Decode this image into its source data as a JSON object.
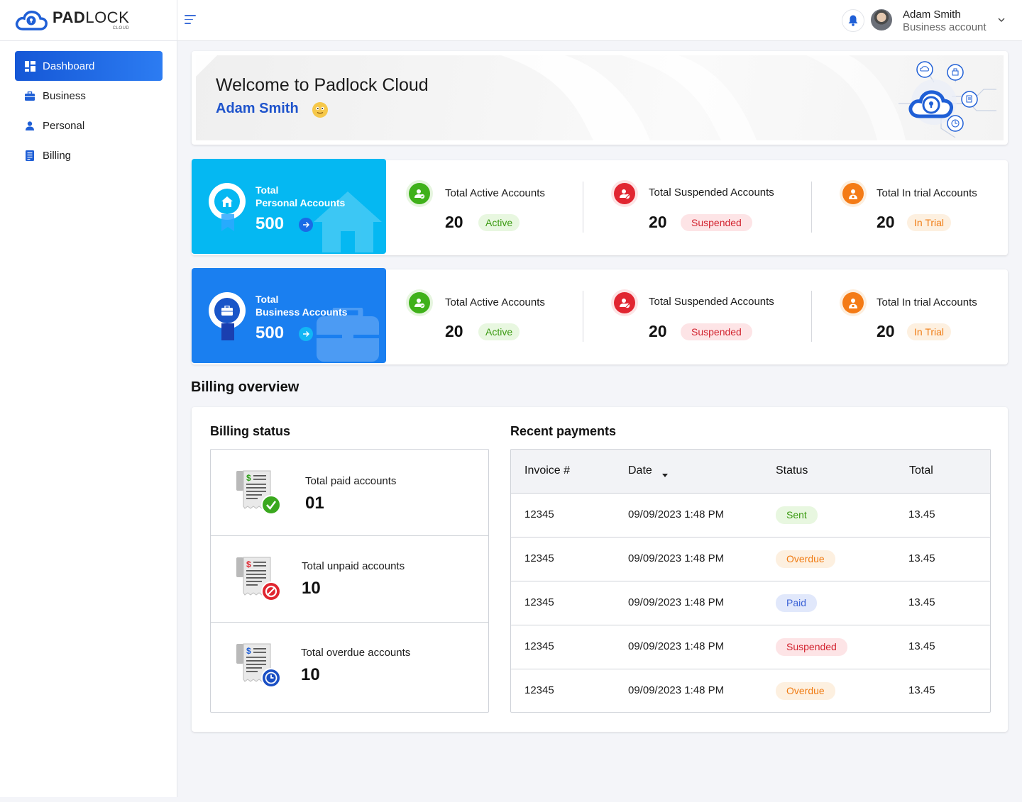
{
  "brand": {
    "word_bold": "PAD",
    "word_light": "LOCK",
    "sub": "CLOUD"
  },
  "sidebar": {
    "items": [
      {
        "label": "Dashboard",
        "icon": "dashboard-icon",
        "active": true
      },
      {
        "label": "Business",
        "icon": "briefcase-icon",
        "active": false
      },
      {
        "label": "Personal",
        "icon": "person-icon",
        "active": false
      },
      {
        "label": "Billing",
        "icon": "document-icon",
        "active": false
      }
    ]
  },
  "header": {
    "user_name": "Adam Smith",
    "user_role": "Business account"
  },
  "welcome": {
    "title": "Welcome to Padlock Cloud",
    "name": "Adam Smith"
  },
  "personal": {
    "line1": "Total",
    "line2": "Personal Accounts",
    "total": "500",
    "stats": [
      {
        "label": "Total Active Accounts",
        "value": "20",
        "badge": "Active"
      },
      {
        "label": "Total Suspended Accounts",
        "value": "20",
        "badge": "Suspended"
      },
      {
        "label": "Total In trial Accounts",
        "value": "20",
        "badge": "In Trial"
      }
    ]
  },
  "business": {
    "line1": "Total",
    "line2": "Business Accounts",
    "total": "500",
    "stats": [
      {
        "label": "Total Active Accounts",
        "value": "20",
        "badge": "Active"
      },
      {
        "label": "Total Suspended Accounts",
        "value": "20",
        "badge": "Suspended"
      },
      {
        "label": "Total In trial Accounts",
        "value": "20",
        "badge": "In Trial"
      }
    ]
  },
  "billing": {
    "section_title": "Billing overview",
    "status_title": "Billing status",
    "status": [
      {
        "label": "Total paid accounts",
        "value": "01"
      },
      {
        "label": "Total unpaid accounts",
        "value": "10"
      },
      {
        "label": "Total overdue accounts",
        "value": "10"
      }
    ],
    "payments_title": "Recent payments",
    "columns": [
      "Invoice #",
      "Date",
      "Status",
      "Total"
    ],
    "rows": [
      {
        "invoice": "12345",
        "date": "09/09/2023 1:48 PM",
        "status": "Sent",
        "total": "13.45"
      },
      {
        "invoice": "12345",
        "date": "09/09/2023 1:48 PM",
        "status": "Overdue",
        "total": "13.45"
      },
      {
        "invoice": "12345",
        "date": "09/09/2023 1:48 PM",
        "status": "Paid",
        "total": "13.45"
      },
      {
        "invoice": "12345",
        "date": "09/09/2023 1:48 PM",
        "status": "Suspended",
        "total": "13.45"
      },
      {
        "invoice": "12345",
        "date": "09/09/2023 1:48 PM",
        "status": "Overdue",
        "total": "13.45"
      }
    ]
  },
  "colors": {
    "primary": "#1a6ae6",
    "personal_card": "#05b8f2",
    "business_card": "#1a7ff0",
    "active": "#3a9a10",
    "suspended": "#d2232f",
    "trial": "#f07c14",
    "paid": "#3b62d6"
  }
}
